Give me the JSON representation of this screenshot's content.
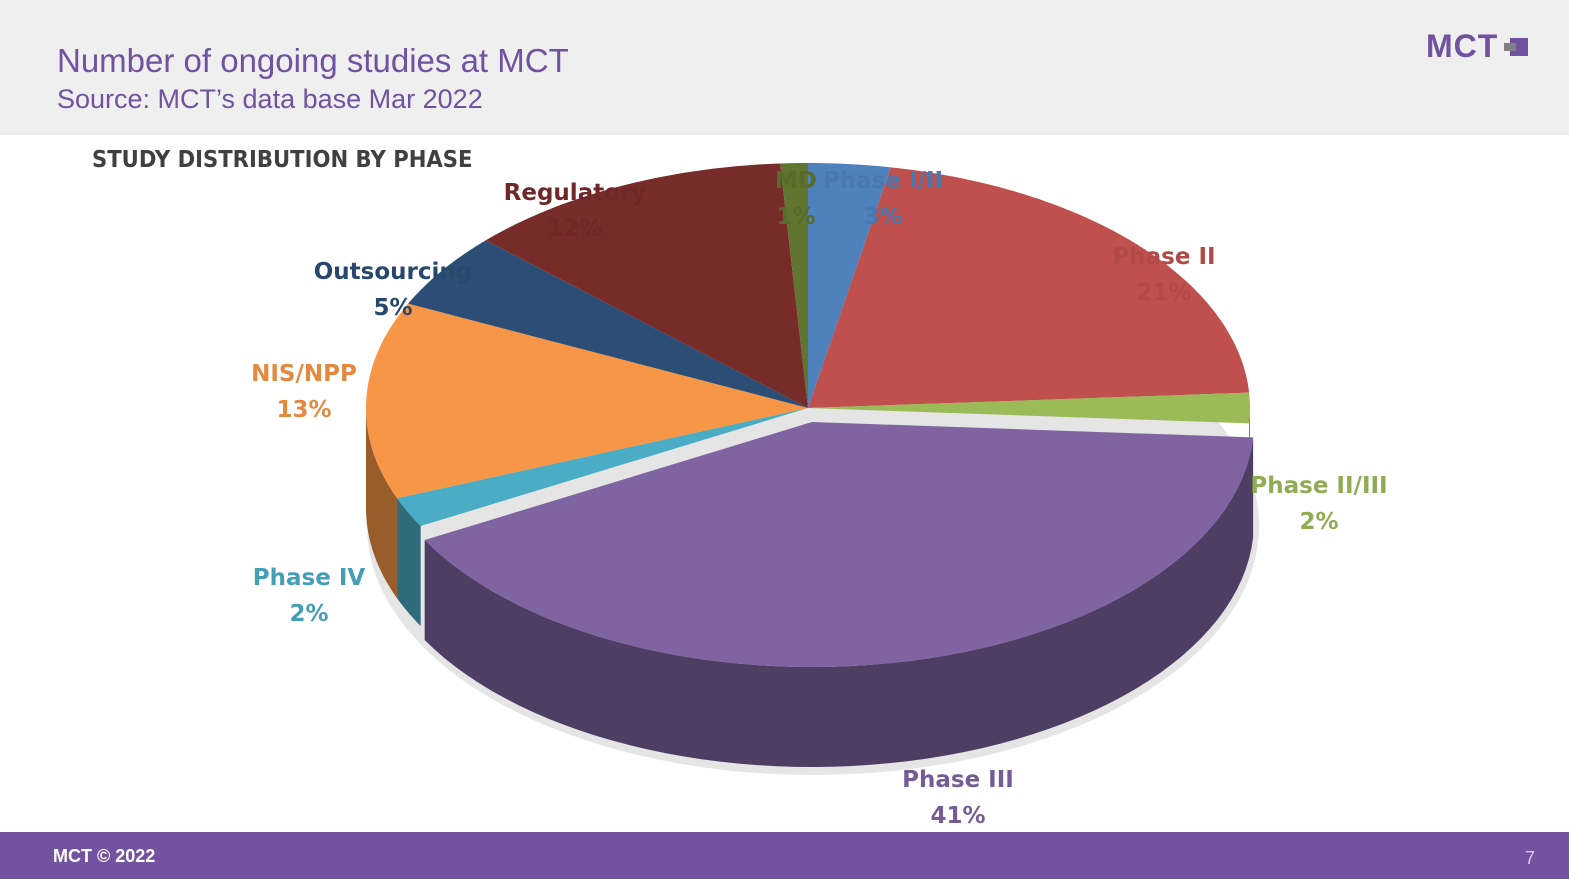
{
  "header": {
    "title": "Number of ongoing studies at MCT",
    "subtitle": "Source: MCT’s data base Mar 2022",
    "logo": "MCT"
  },
  "footer": {
    "copyright": "MCT © 2022",
    "page_number": "7"
  },
  "chart_data": {
    "type": "pie",
    "style": "3d",
    "title": "STUDY DISTRIBUTION BY PHASE",
    "slices": [
      {
        "label": "Phase I/II",
        "value": 3,
        "display": "3%",
        "color": "#4f81bd"
      },
      {
        "label": "Phase II",
        "value": 21,
        "display": "21%",
        "color": "#c0504d"
      },
      {
        "label": "Phase II/III",
        "value": 2,
        "display": "2%",
        "color": "#9bbb59"
      },
      {
        "label": "Phase III",
        "value": 41,
        "display": "41%",
        "color": "#8064a2",
        "exploded": true
      },
      {
        "label": "Phase IV",
        "value": 2,
        "display": "2%",
        "color": "#4bacc6"
      },
      {
        "label": "NIS/NPP",
        "value": 13,
        "display": "13%",
        "color": "#f79646"
      },
      {
        "label": "Outsourcing",
        "value": 5,
        "display": "5%",
        "color": "#2c4d75"
      },
      {
        "label": "Regulatory",
        "value": 12,
        "display": "12%",
        "color": "#772c2a"
      },
      {
        "label": "MD",
        "value": 1,
        "display": "1%",
        "color": "#5f7530"
      }
    ]
  }
}
